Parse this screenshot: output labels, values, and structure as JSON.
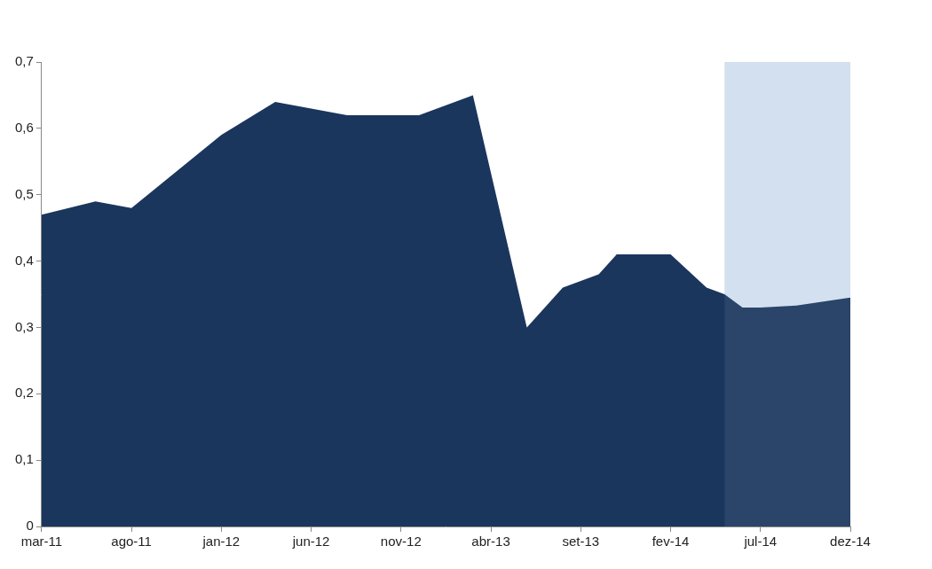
{
  "chart_data": {
    "type": "area",
    "categories": [
      "mar-11",
      null,
      null,
      null,
      null,
      "ago-11",
      null,
      null,
      null,
      null,
      "jan-12",
      null,
      null,
      null,
      null,
      "jun-12",
      null,
      null,
      null,
      null,
      "nov-12",
      null,
      null,
      null,
      null,
      "abr-13",
      null,
      null,
      null,
      null,
      "set-13",
      null,
      null,
      null,
      null,
      "fev-14",
      null,
      null,
      null,
      null,
      "jul-14",
      null,
      null,
      null,
      null,
      "dez-14"
    ],
    "values": [
      0.47,
      null,
      null,
      0.49,
      null,
      0.48,
      null,
      null,
      null,
      null,
      0.59,
      null,
      null,
      0.64,
      null,
      null,
      null,
      0.62,
      null,
      null,
      null,
      0.62,
      null,
      null,
      0.65,
      null,
      null,
      0.3,
      null,
      0.36,
      null,
      0.38,
      0.41,
      null,
      null,
      0.41,
      null,
      0.36,
      0.35,
      0.33,
      0.33,
      null,
      0.333,
      null,
      null,
      0.345
    ],
    "color": "#1b365d",
    "highlight": {
      "from": 38,
      "to": 45,
      "color": "#d0deef"
    },
    "ylim": [
      0,
      0.7
    ],
    "yticks": [
      0,
      {
        "value": 0.1,
        "label": "0,1"
      },
      {
        "value": 0.2,
        "label": "0,2"
      },
      {
        "value": 0.3,
        "label": "0,3"
      },
      {
        "value": 0.4,
        "label": "0,4"
      },
      {
        "value": 0.5,
        "label": "0,5"
      },
      {
        "value": 0.6,
        "label": "0,6"
      },
      {
        "value": 0.7,
        "label": "0,7"
      }
    ],
    "grid": false
  }
}
